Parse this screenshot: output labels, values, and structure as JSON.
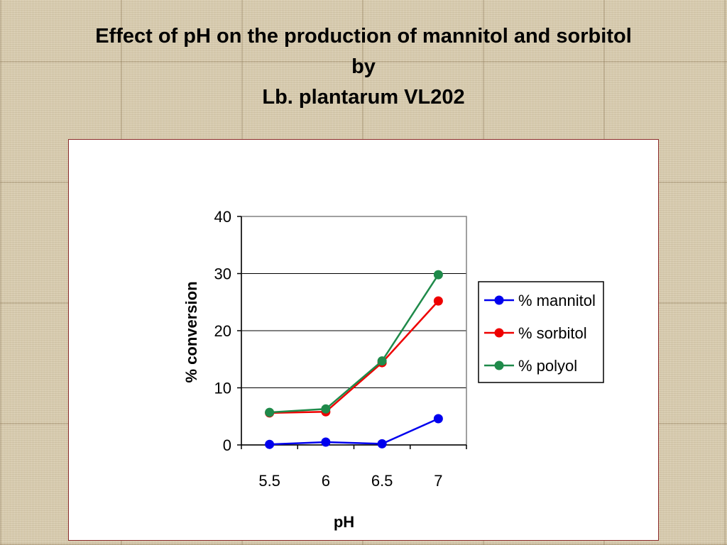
{
  "slide": {
    "title_line1": "Effect of pH on the production of mannitol and sorbitol",
    "title_line2": "by",
    "title_line3": "Lb. plantarum VL202"
  },
  "chart_data": {
    "type": "line",
    "x": [
      "5.5",
      "6",
      "6.5",
      "7"
    ],
    "xlabel": "pH",
    "ylabel": "% conversion",
    "ylim": [
      0,
      40
    ],
    "yticks": [
      0,
      10,
      20,
      30,
      40
    ],
    "grid": true,
    "legend_position": "right",
    "series": [
      {
        "name": "% mannitol",
        "color": "#0000ee",
        "values": [
          0.1,
          0.5,
          0.2,
          4.6
        ]
      },
      {
        "name": "% sorbitol",
        "color": "#ee0000",
        "values": [
          5.6,
          5.8,
          14.4,
          25.2
        ]
      },
      {
        "name": "% polyol",
        "color": "#1f8a4a",
        "values": [
          5.7,
          6.3,
          14.7,
          29.8
        ]
      }
    ]
  }
}
